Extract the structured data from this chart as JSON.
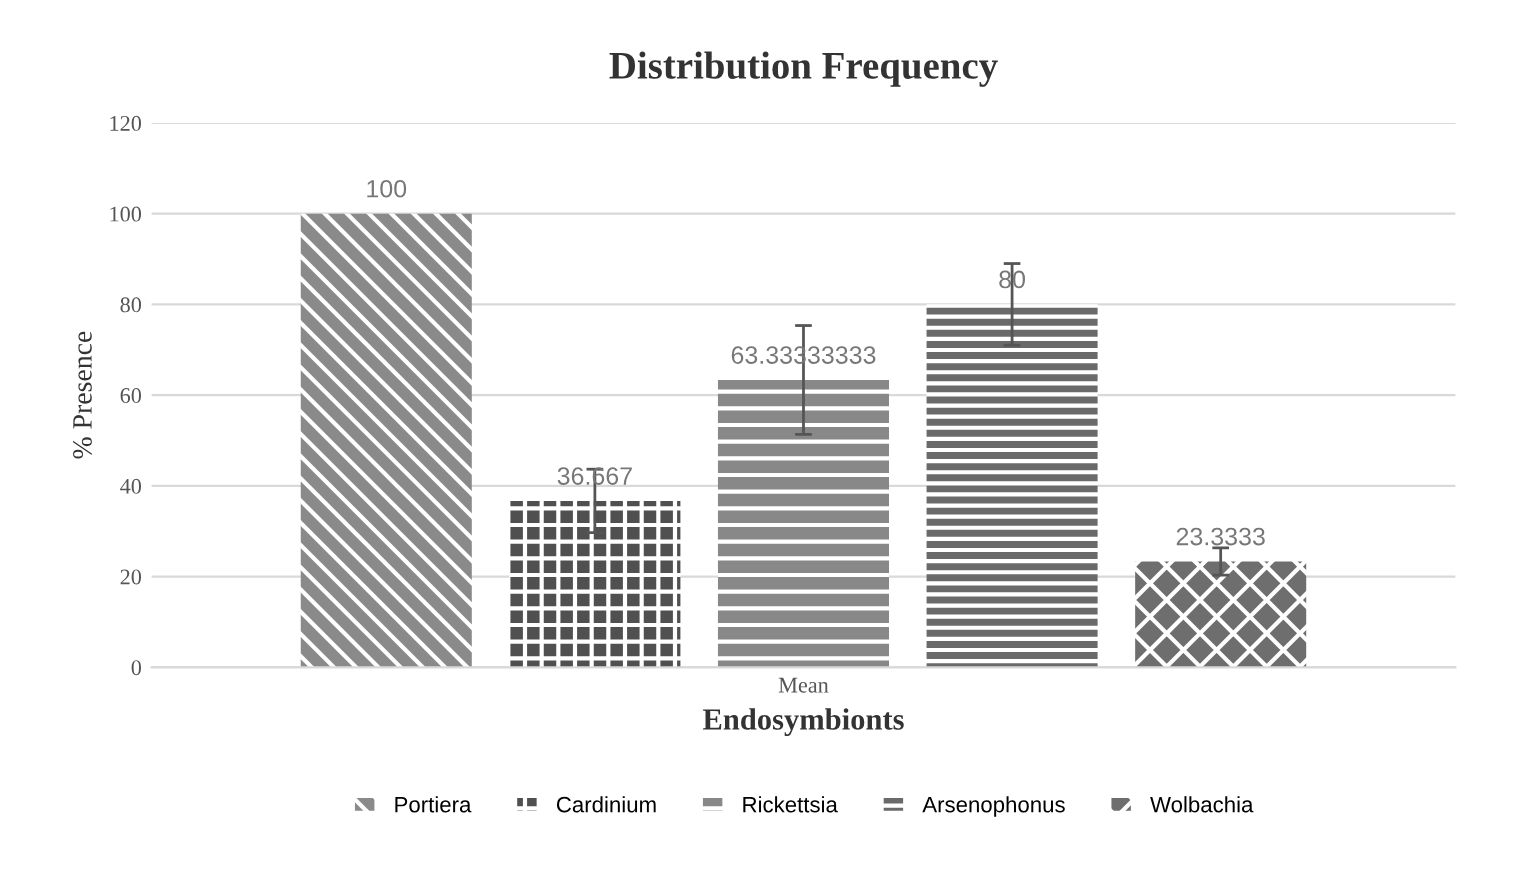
{
  "chart_data": {
    "type": "bar",
    "title": "Distribution Frequency",
    "xlabel": "Endosymbionts",
    "ylabel": "% Presence",
    "categories": [
      "Mean"
    ],
    "series": [
      {
        "name": "Portiera",
        "color": "#8a8a8a",
        "values": [
          100
        ]
      },
      {
        "name": "Cardinium",
        "color": "#505050",
        "values": [
          36.667
        ],
        "errors": [
          7
        ]
      },
      {
        "name": "Rickettsia",
        "color": "#888888",
        "values": [
          63.33333333
        ],
        "errors": [
          12
        ]
      },
      {
        "name": "Arsenophonus",
        "color": "#6a6a6a",
        "values": [
          80
        ],
        "errors": [
          9
        ]
      },
      {
        "name": "Wolbachia",
        "color": "#6e6e6e",
        "values": [
          23.3333
        ],
        "errors": [
          3
        ]
      }
    ],
    "ylim": [
      0,
      120
    ],
    "yticks": [
      0,
      20,
      40,
      60,
      80,
      100,
      120
    ],
    "grid": "y",
    "legend": "bottom",
    "data_labels": true
  }
}
